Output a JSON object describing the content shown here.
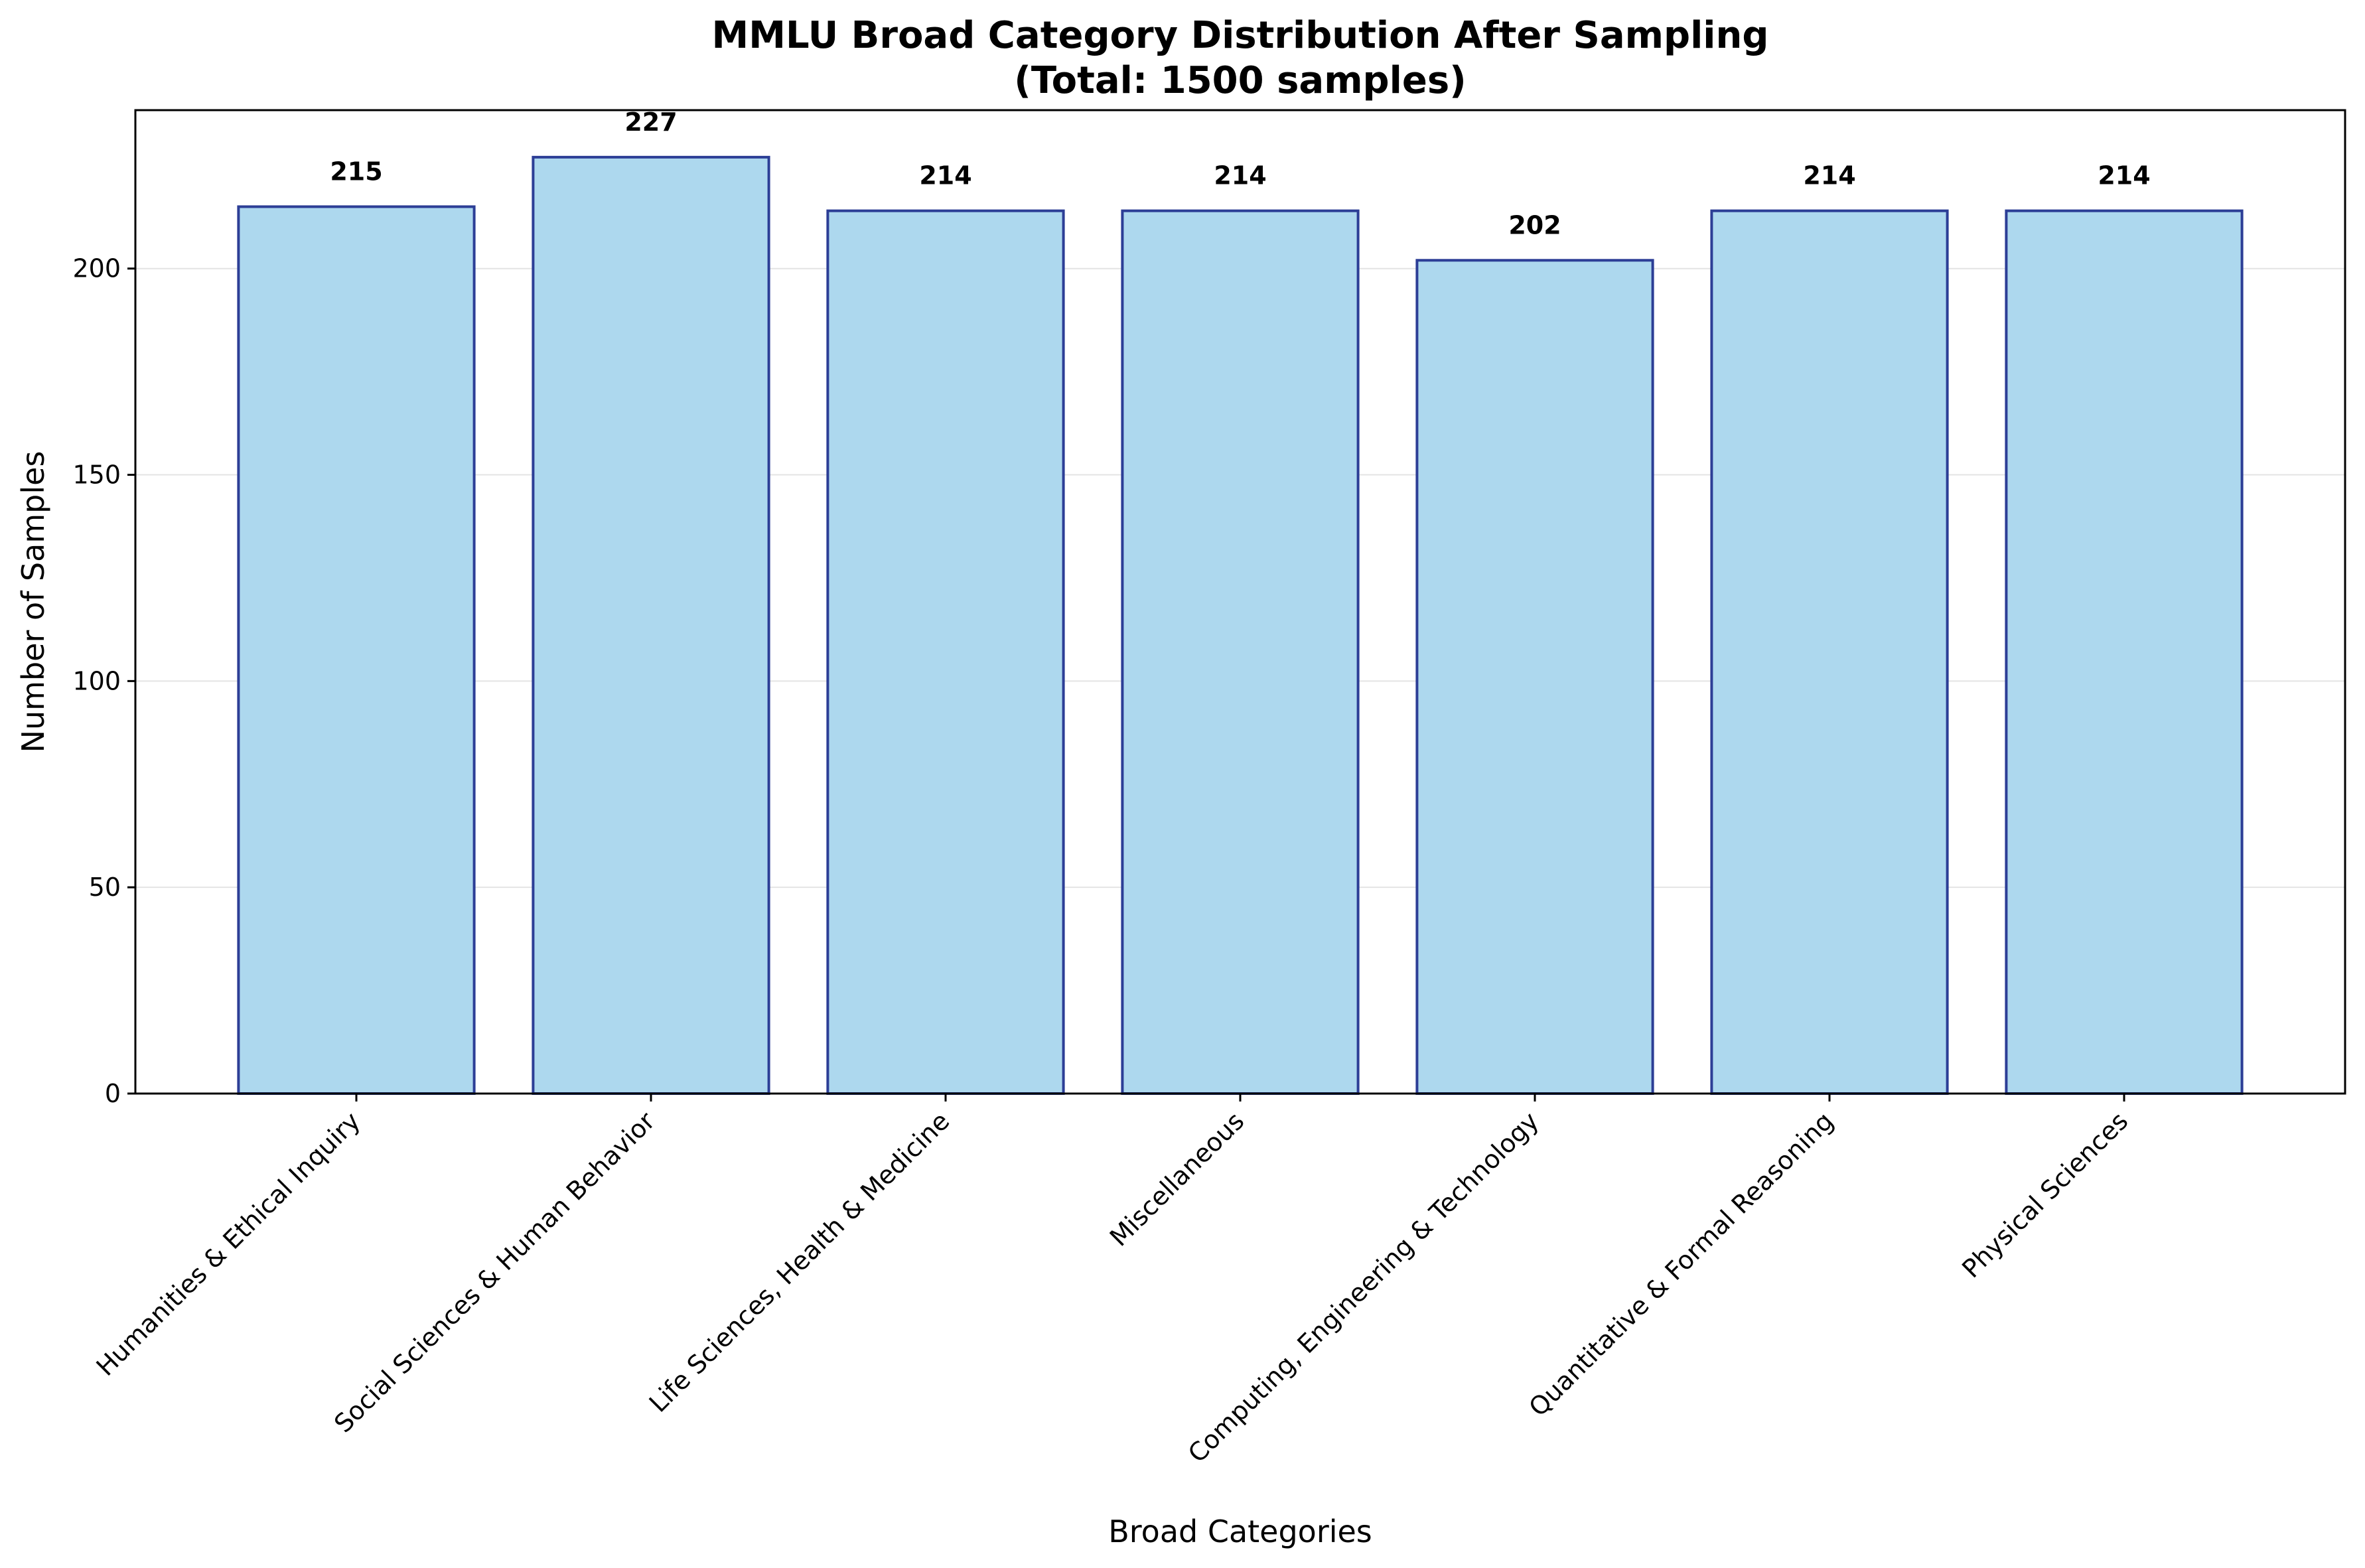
{
  "chart_data": {
    "type": "bar",
    "title_line1": "MMLU Broad Category Distribution After Sampling",
    "title_line2": "(Total: 1500 samples)",
    "xlabel": "Broad Categories",
    "ylabel": "Number of Samples",
    "categories": [
      "Humanities & Ethical Inquiry",
      "Social Sciences & Human Behavior",
      "Life Sciences, Health & Medicine",
      "Miscellaneous",
      "Computing, Engineering & Technology",
      "Quantitative & Formal Reasoning",
      "Physical Sciences"
    ],
    "values": [
      215,
      227,
      214,
      214,
      202,
      214,
      214
    ],
    "ylim": [
      0,
      238.4
    ],
    "yticks": [
      0,
      50,
      100,
      150,
      200
    ],
    "grid": "y",
    "legend": "none",
    "colors": {
      "bar_fill": "#add8ee",
      "bar_edge": "#2c3e96",
      "grid": "#e4e4e4",
      "axis": "#000000"
    }
  }
}
